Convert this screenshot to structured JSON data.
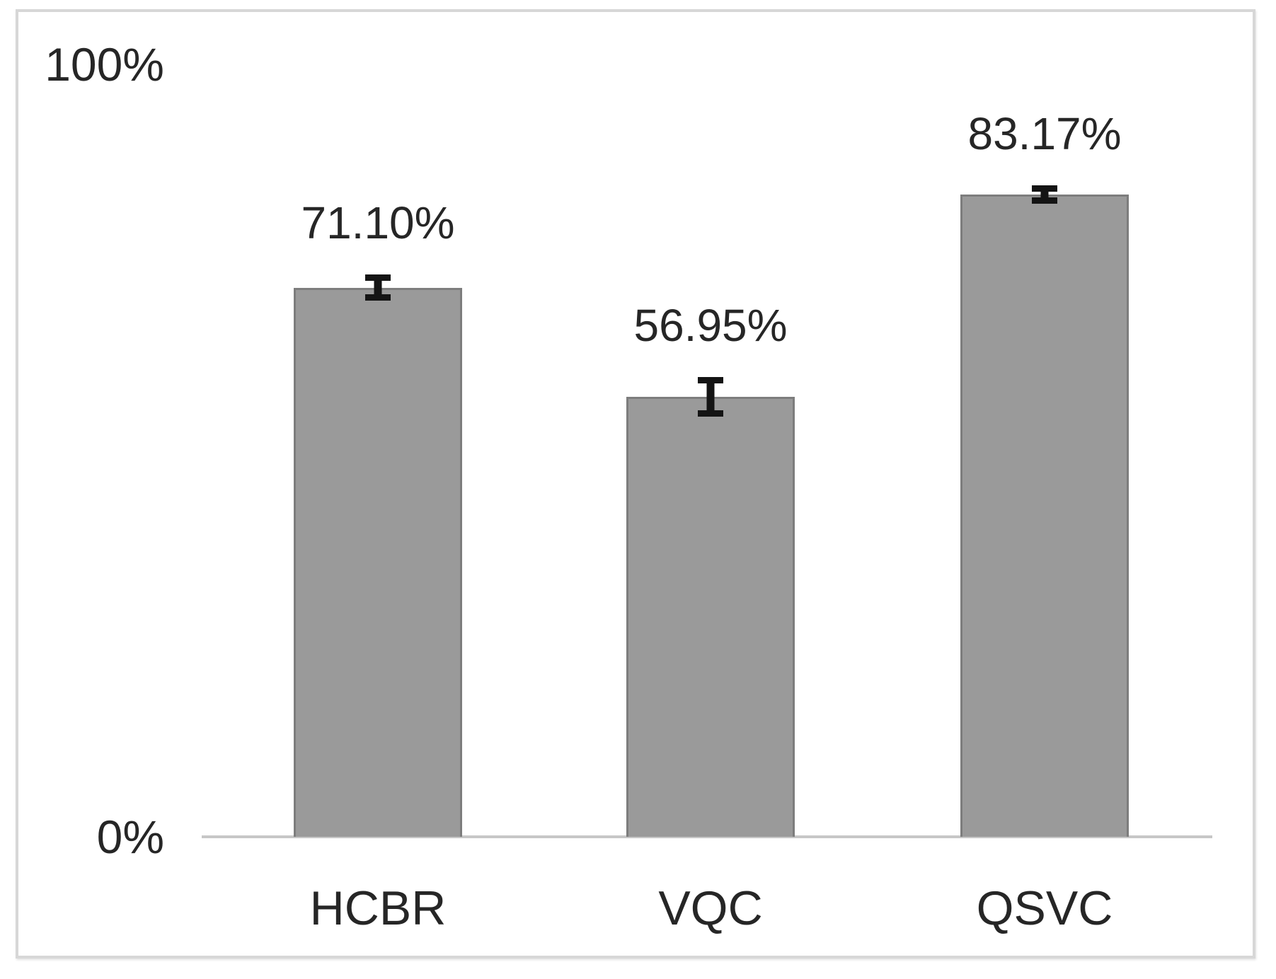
{
  "chart_data": {
    "type": "bar",
    "categories": [
      "HCBR",
      "VQC",
      "QSVC"
    ],
    "values": [
      71.1,
      56.95,
      83.17
    ],
    "value_labels": [
      "71.10%",
      "56.95%",
      "83.17%"
    ],
    "error_bars_pct": [
      1.7,
      2.55,
      1.2
    ],
    "title": "",
    "xlabel": "",
    "ylabel": "",
    "ylim": [
      0,
      100
    ],
    "yticks": [
      "0%",
      "100%"
    ],
    "grid": false,
    "legend": "none",
    "colors": {
      "bar_fill": "#9a9a9a",
      "bar_border": "#7d7d7d",
      "error_bar": "#141414",
      "axis_line": "#c7c7c7",
      "text": "#262626",
      "frame_border": "#d7d7d7",
      "background": "#ffffff"
    }
  }
}
